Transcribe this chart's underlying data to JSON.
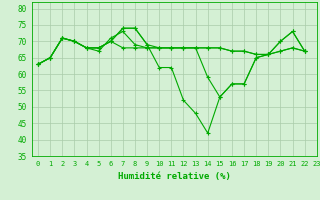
{
  "xlabel": "Humidité relative (%)",
  "background_color": "#d4f0d4",
  "grid_color": "#aaccaa",
  "line_color": "#00aa00",
  "xlim": [
    -0.5,
    23
  ],
  "ylim": [
    35,
    82
  ],
  "yticks": [
    35,
    40,
    45,
    50,
    55,
    60,
    65,
    70,
    75,
    80
  ],
  "xticks": [
    0,
    1,
    2,
    3,
    4,
    5,
    6,
    7,
    8,
    9,
    10,
    11,
    12,
    13,
    14,
    15,
    16,
    17,
    18,
    19,
    20,
    21,
    22,
    23
  ],
  "series": [
    [
      63,
      65,
      71,
      70,
      68,
      68,
      70,
      74,
      74,
      69,
      62,
      62,
      52,
      48,
      42,
      53,
      57,
      57,
      65,
      66,
      70,
      73,
      67
    ],
    [
      63,
      65,
      71,
      70,
      68,
      67,
      71,
      73,
      69,
      68,
      68,
      68,
      68,
      68,
      68,
      68,
      67,
      67,
      66,
      66,
      67,
      68,
      67
    ],
    [
      63,
      65,
      71,
      70,
      68,
      68,
      70,
      68,
      68,
      68,
      68,
      68,
      68,
      68,
      68,
      68,
      67,
      67,
      66,
      66,
      67,
      68,
      67
    ],
    [
      63,
      65,
      71,
      70,
      68,
      68,
      70,
      74,
      74,
      69,
      68,
      68,
      68,
      68,
      59,
      53,
      57,
      57,
      65,
      66,
      70,
      73,
      67
    ]
  ]
}
